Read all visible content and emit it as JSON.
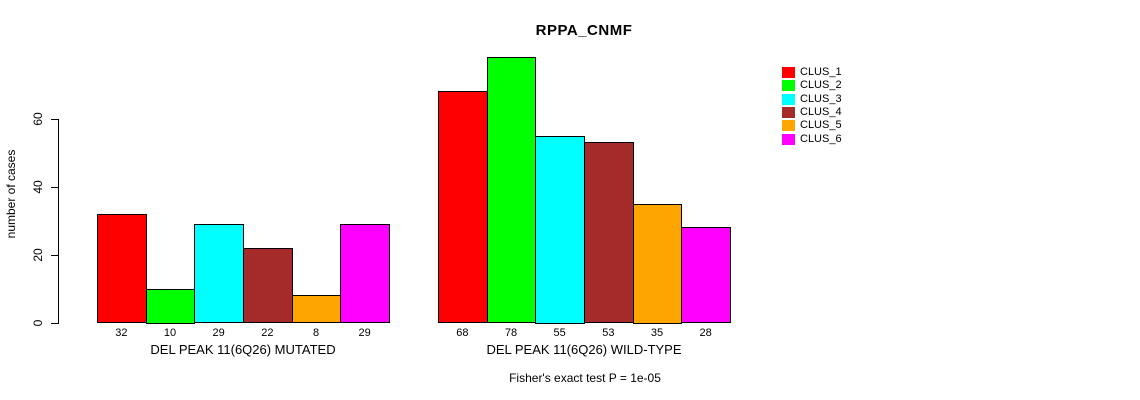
{
  "chart_data": {
    "type": "bar",
    "title": "RPPA_CNMF",
    "ylabel": "number of cases",
    "footnote": "Fisher's exact test P = 1e-05",
    "ylim": [
      0,
      78
    ],
    "yticks": [
      0,
      20,
      40,
      60
    ],
    "grid": false,
    "legend_position": "top-right",
    "series": [
      {
        "name": "CLUS_1",
        "color": "#ff0000"
      },
      {
        "name": "CLUS_2",
        "color": "#00ff00"
      },
      {
        "name": "CLUS_3",
        "color": "#00ffff"
      },
      {
        "name": "CLUS_4",
        "color": "#a52a2a"
      },
      {
        "name": "CLUS_5",
        "color": "#ffa500"
      },
      {
        "name": "CLUS_6",
        "color": "#ff00ff"
      }
    ],
    "groups": [
      {
        "label": "DEL PEAK 11(6Q26) MUTATED",
        "values": [
          32,
          10,
          29,
          22,
          8,
          29
        ]
      },
      {
        "label": "DEL PEAK 11(6Q26) WILD-TYPE",
        "values": [
          68,
          78,
          55,
          53,
          35,
          28
        ]
      }
    ]
  }
}
